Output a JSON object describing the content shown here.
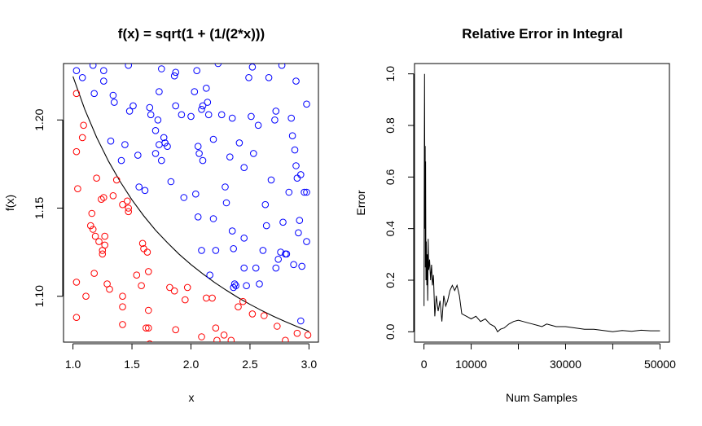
{
  "chart_data": [
    {
      "type": "scatter",
      "title": "f(x) = sqrt(1 + (1/(2*x)))",
      "xlabel": "x",
      "ylabel": "f(x)",
      "xlim": [
        0.92,
        3.08
      ],
      "ylim": [
        1.074,
        1.232
      ],
      "x_ticks": [
        1.0,
        1.5,
        2.0,
        2.5,
        3.0
      ],
      "x_tick_labels": [
        "1.0",
        "1.5",
        "2.0",
        "2.5",
        "3.0"
      ],
      "y_ticks": [
        1.1,
        1.15,
        1.2
      ],
      "y_tick_labels": [
        "1.10",
        "1.15",
        "1.20"
      ],
      "grid": false,
      "colors": {
        "above": "#0000ff",
        "below": "#ff0000",
        "curve": "#000000"
      },
      "curve": {
        "x": [
          1.0,
          1.1,
          1.2,
          1.3,
          1.4,
          1.5,
          1.6,
          1.7,
          1.8,
          1.9,
          2.0,
          2.1,
          2.2,
          2.3,
          2.4,
          2.5,
          2.6,
          2.7,
          2.8,
          2.9,
          3.0
        ],
        "y": [
          1.2247,
          1.206,
          1.1902,
          1.1767,
          1.165,
          1.1547,
          1.1456,
          1.1375,
          1.1304,
          1.1238,
          1.118,
          1.1127,
          1.1078,
          1.1034,
          1.0992,
          1.0954,
          1.0919,
          1.0886,
          1.0856,
          1.0828,
          1.0801
        ]
      },
      "series": [
        {
          "color": "#0000ff",
          "points": [
            [
              1.03,
              1.228
            ],
            [
              1.08,
              1.224
            ],
            [
              1.17,
              1.231
            ],
            [
              1.26,
              1.228
            ],
            [
              1.26,
              1.222
            ],
            [
              1.18,
              1.215
            ],
            [
              1.34,
              1.214
            ],
            [
              1.35,
              1.21
            ],
            [
              1.47,
              1.231
            ],
            [
              1.48,
              1.205
            ],
            [
              1.51,
              1.208
            ],
            [
              1.32,
              1.188
            ],
            [
              1.44,
              1.186
            ],
            [
              1.41,
              1.177
            ],
            [
              1.55,
              1.18
            ],
            [
              1.56,
              1.162
            ],
            [
              1.61,
              1.16
            ],
            [
              1.65,
              1.207
            ],
            [
              1.66,
              1.203
            ],
            [
              1.72,
              1.2
            ],
            [
              1.73,
              1.216
            ],
            [
              1.7,
              1.194
            ],
            [
              1.7,
              1.181
            ],
            [
              1.73,
              1.186
            ],
            [
              1.77,
              1.19
            ],
            [
              1.78,
              1.187
            ],
            [
              1.8,
              1.185
            ],
            [
              1.75,
              1.177
            ],
            [
              1.86,
              1.225
            ],
            [
              1.87,
              1.227
            ],
            [
              1.75,
              1.229
            ],
            [
              1.83,
              1.165
            ],
            [
              1.87,
              1.208
            ],
            [
              1.92,
              1.203
            ],
            [
              1.94,
              1.156
            ],
            [
              2.0,
              1.202
            ],
            [
              2.05,
              1.228
            ],
            [
              2.03,
              1.216
            ],
            [
              2.06,
              1.185
            ],
            [
              2.07,
              1.181
            ],
            [
              2.09,
              1.206
            ],
            [
              2.1,
              1.208
            ],
            [
              2.13,
              1.218
            ],
            [
              2.14,
              1.21
            ],
            [
              2.15,
              1.203
            ],
            [
              2.04,
              1.158
            ],
            [
              2.06,
              1.145
            ],
            [
              2.1,
              1.177
            ],
            [
              2.09,
              1.126
            ],
            [
              2.16,
              1.112
            ],
            [
              2.19,
              1.189
            ],
            [
              2.19,
              1.144
            ],
            [
              2.21,
              1.126
            ],
            [
              2.26,
              1.203
            ],
            [
              2.29,
              1.162
            ],
            [
              2.3,
              1.153
            ],
            [
              2.33,
              1.179
            ],
            [
              2.35,
              1.201
            ],
            [
              2.35,
              1.137
            ],
            [
              2.36,
              1.127
            ],
            [
              2.36,
              1.105
            ],
            [
              2.37,
              1.107
            ],
            [
              2.38,
              1.106
            ],
            [
              2.41,
              1.187
            ],
            [
              2.45,
              1.133
            ],
            [
              2.45,
              1.173
            ],
            [
              2.45,
              1.116
            ],
            [
              2.47,
              1.106
            ],
            [
              2.49,
              1.224
            ],
            [
              2.51,
              1.202
            ],
            [
              2.53,
              1.181
            ],
            [
              2.55,
              1.116
            ],
            [
              2.57,
              1.197
            ],
            [
              2.58,
              1.107
            ],
            [
              2.61,
              1.126
            ],
            [
              2.63,
              1.152
            ],
            [
              2.64,
              1.14
            ],
            [
              2.66,
              1.224
            ],
            [
              2.68,
              1.166
            ],
            [
              2.71,
              1.2
            ],
            [
              2.72,
              1.205
            ],
            [
              2.72,
              1.116
            ],
            [
              2.74,
              1.121
            ],
            [
              2.76,
              1.125
            ],
            [
              2.77,
              1.231
            ],
            [
              2.78,
              1.142
            ],
            [
              2.8,
              1.124
            ],
            [
              2.81,
              1.124
            ],
            [
              2.83,
              1.159
            ],
            [
              2.85,
              1.201
            ],
            [
              2.86,
              1.191
            ],
            [
              2.87,
              1.118
            ],
            [
              2.88,
              1.183
            ],
            [
              2.89,
              1.222
            ],
            [
              2.89,
              1.174
            ],
            [
              2.9,
              1.167
            ],
            [
              2.92,
              1.143
            ],
            [
              2.93,
              1.169
            ],
            [
              2.93,
              1.086
            ],
            [
              2.94,
              1.117
            ],
            [
              2.96,
              1.159
            ],
            [
              2.98,
              1.159
            ],
            [
              2.98,
              1.131
            ],
            [
              2.98,
              1.209
            ],
            [
              2.91,
              1.136
            ],
            [
              2.23,
              1.232
            ],
            [
              2.52,
              1.23
            ]
          ]
        },
        {
          "color": "#ff0000",
          "points": [
            [
              1.03,
              1.215
            ],
            [
              1.09,
              1.197
            ],
            [
              1.08,
              1.19
            ],
            [
              1.03,
              1.182
            ],
            [
              1.04,
              1.161
            ],
            [
              1.16,
              1.147
            ],
            [
              1.15,
              1.14
            ],
            [
              1.17,
              1.138
            ],
            [
              1.19,
              1.134
            ],
            [
              1.2,
              1.167
            ],
            [
              1.22,
              1.131
            ],
            [
              1.24,
              1.155
            ],
            [
              1.26,
              1.156
            ],
            [
              1.25,
              1.126
            ],
            [
              1.27,
              1.134
            ],
            [
              1.27,
              1.129
            ],
            [
              1.29,
              1.107
            ],
            [
              1.31,
              1.104
            ],
            [
              1.34,
              1.157
            ],
            [
              1.37,
              1.166
            ],
            [
              1.42,
              1.152
            ],
            [
              1.46,
              1.154
            ],
            [
              1.47,
              1.148
            ],
            [
              1.47,
              1.15
            ],
            [
              1.54,
              1.112
            ],
            [
              1.58,
              1.106
            ],
            [
              1.6,
              1.127
            ],
            [
              1.63,
              1.125
            ],
            [
              1.64,
              1.114
            ],
            [
              1.64,
              1.092
            ],
            [
              1.64,
              1.082
            ],
            [
              1.65,
              1.073
            ],
            [
              1.62,
              1.082
            ],
            [
              1.59,
              1.13
            ],
            [
              1.42,
              1.1
            ],
            [
              1.42,
              1.094
            ],
            [
              1.42,
              1.084
            ],
            [
              1.03,
              1.108
            ],
            [
              1.11,
              1.1
            ],
            [
              1.18,
              1.113
            ],
            [
              1.25,
              1.124
            ],
            [
              1.03,
              1.088
            ],
            [
              1.82,
              1.105
            ],
            [
              1.86,
              1.103
            ],
            [
              1.87,
              1.081
            ],
            [
              1.95,
              1.098
            ],
            [
              1.97,
              1.105
            ],
            [
              2.09,
              1.077
            ],
            [
              2.13,
              1.099
            ],
            [
              2.18,
              1.099
            ],
            [
              2.21,
              1.082
            ],
            [
              2.22,
              1.075
            ],
            [
              2.28,
              1.078
            ],
            [
              2.34,
              1.075
            ],
            [
              2.4,
              1.094
            ],
            [
              2.44,
              1.097
            ],
            [
              2.52,
              1.09
            ],
            [
              2.62,
              1.089
            ],
            [
              2.73,
              1.083
            ],
            [
              2.8,
              1.075
            ],
            [
              2.9,
              1.079
            ],
            [
              2.99,
              1.078
            ]
          ]
        }
      ]
    },
    {
      "type": "line",
      "title": "Relative Error in Integral",
      "xlabel": "Num Samples",
      "ylabel": "Error",
      "xlim": [
        -2000,
        52000
      ],
      "ylim": [
        -0.04,
        1.04
      ],
      "x_ticks": [
        0,
        10000,
        20000,
        30000,
        40000,
        50000
      ],
      "x_tick_labels": [
        "0",
        "10000",
        "",
        "30000",
        "",
        "50000"
      ],
      "y_ticks": [
        0.0,
        0.2,
        0.4,
        0.6,
        0.8,
        1.0
      ],
      "y_tick_labels": [
        "0.0",
        "0.2",
        "0.4",
        "0.6",
        "0.8",
        "1.0"
      ],
      "grid": false,
      "colors": {
        "line": "#000000"
      },
      "series": [
        {
          "x": [
            10,
            60,
            120,
            200,
            260,
            300,
            350,
            420,
            500,
            600,
            700,
            800,
            900,
            1000,
            1200,
            1400,
            1600,
            1800,
            2000,
            2300,
            2600,
            3000,
            3400,
            3800,
            4200,
            4600,
            5000,
            5500,
            6000,
            6500,
            7000,
            7500,
            8000,
            9000,
            10000,
            11000,
            12000,
            13000,
            14000,
            15000,
            15600,
            16200,
            17000,
            18000,
            19000,
            20000,
            21000,
            22000,
            23000,
            24000,
            25000,
            26000,
            27000,
            28000,
            30000,
            32000,
            34000,
            36000,
            38000,
            40000,
            42000,
            44000,
            46000,
            48000,
            50000
          ],
          "y": [
            0.1,
            0.5,
            1.0,
            0.4,
            0.72,
            0.25,
            0.66,
            0.2,
            0.35,
            0.18,
            0.3,
            0.12,
            0.36,
            0.24,
            0.28,
            0.2,
            0.26,
            0.18,
            0.22,
            0.06,
            0.14,
            0.08,
            0.12,
            0.04,
            0.14,
            0.1,
            0.12,
            0.16,
            0.18,
            0.16,
            0.18,
            0.14,
            0.07,
            0.06,
            0.05,
            0.06,
            0.04,
            0.05,
            0.03,
            0.02,
            0.0,
            0.01,
            0.015,
            0.03,
            0.04,
            0.045,
            0.04,
            0.035,
            0.03,
            0.025,
            0.02,
            0.03,
            0.025,
            0.02,
            0.02,
            0.015,
            0.01,
            0.01,
            0.005,
            0.0,
            0.005,
            0.002,
            0.006,
            0.004,
            0.004
          ]
        }
      ]
    }
  ]
}
